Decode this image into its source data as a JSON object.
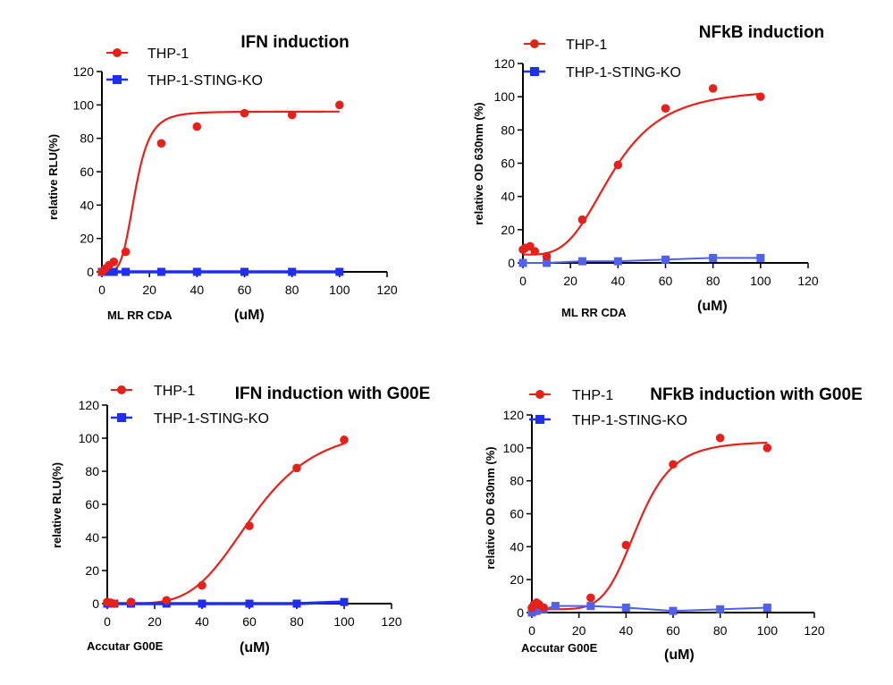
{
  "colors": {
    "thp1": "#e8201a",
    "ko": "#1f2ef0",
    "ko_light": "#5060f0"
  },
  "legend_labels": [
    "THP-1",
    "THP-1-STING-KO"
  ],
  "chart_data": [
    {
      "type": "scatter",
      "title": "IFN induction",
      "ylabel": "relative RLU(%)",
      "xlabel": "ML RR CDA",
      "xunit": "(uM)",
      "xlim": [
        0,
        120
      ],
      "ylim": [
        0,
        120
      ],
      "xticks": [
        "0",
        "20",
        "40",
        "60",
        "80",
        "100",
        "120"
      ],
      "yticks": [
        "0",
        "20",
        "40",
        "60",
        "80",
        "100",
        "120"
      ],
      "curve": {
        "bottom": 0,
        "top": 96,
        "ec50": 14,
        "hill": 4.5
      },
      "series": [
        {
          "name": "THP-1",
          "x": [
            0,
            1.5,
            3,
            5,
            10,
            25,
            40,
            60,
            80,
            100
          ],
          "y": [
            0,
            2,
            4,
            6,
            12,
            77,
            87,
            95,
            94,
            100
          ]
        },
        {
          "name": "THP-1-STING-KO",
          "x": [
            0,
            1.5,
            3,
            5,
            10,
            25,
            40,
            60,
            80,
            100
          ],
          "y": [
            0,
            0,
            0,
            0,
            0,
            0,
            0,
            0,
            0,
            0
          ]
        }
      ]
    },
    {
      "type": "scatter",
      "title": "NFkB induction",
      "ylabel": "relative OD 630nm (%)",
      "xlabel": "ML RR CDA",
      "xunit": "(uM)",
      "xlim": [
        0,
        120
      ],
      "ylim": [
        0,
        120
      ],
      "xticks": [
        "0",
        "20",
        "40",
        "60",
        "80",
        "100",
        "120"
      ],
      "yticks": [
        "0",
        "20",
        "40",
        "60",
        "80",
        "100",
        "120"
      ],
      "curve": {
        "bottom": 5,
        "top": 105,
        "ec50": 38,
        "hill": 3.5
      },
      "series": [
        {
          "name": "THP-1",
          "x": [
            0,
            1,
            3,
            5,
            10,
            25,
            40,
            60,
            80,
            100
          ],
          "y": [
            8,
            9,
            10,
            7,
            4,
            26,
            59,
            93,
            105,
            100
          ]
        },
        {
          "name": "THP-1-STING-KO",
          "x": [
            0,
            10,
            25,
            40,
            60,
            80,
            100
          ],
          "y": [
            0,
            0,
            1,
            1,
            2,
            3,
            3
          ]
        }
      ]
    },
    {
      "type": "scatter",
      "title": "IFN induction with G00E",
      "ylabel": "relative RLU(%)",
      "xlabel": "Accutar G00E",
      "xunit": "(uM)",
      "xlim": [
        0,
        120
      ],
      "ylim": [
        0,
        120
      ],
      "xticks": [
        "0",
        "20",
        "40",
        "60",
        "80",
        "100",
        "120"
      ],
      "yticks": [
        "0",
        "20",
        "40",
        "60",
        "80",
        "100",
        "120"
      ],
      "curve": {
        "bottom": 0,
        "top": 108,
        "ec50": 62,
        "hill": 4.5
      },
      "series": [
        {
          "name": "THP-1",
          "x": [
            0,
            1.5,
            3,
            10,
            25,
            40,
            60,
            80,
            100
          ],
          "y": [
            1,
            0.5,
            0,
            1,
            2,
            11,
            47,
            82,
            99
          ]
        },
        {
          "name": "THP-1-STING-KO",
          "x": [
            0,
            1.5,
            3,
            10,
            25,
            40,
            60,
            80,
            100
          ],
          "y": [
            0,
            0,
            0,
            0,
            0,
            0,
            0,
            0,
            1
          ]
        }
      ]
    },
    {
      "type": "scatter",
      "title": "NFkB induction with G00E",
      "ylabel": "relative OD 630nm (%)",
      "xlabel": "Accutar G00E",
      "xunit": "(uM)",
      "xlim": [
        0,
        120
      ],
      "ylim": [
        0,
        120
      ],
      "xticks": [
        "0",
        "20",
        "40",
        "60",
        "80",
        "100",
        "120"
      ],
      "yticks": [
        "0",
        "20",
        "40",
        "60",
        "80",
        "100",
        "120"
      ],
      "curve": {
        "bottom": 2,
        "top": 104,
        "ec50": 45,
        "hill": 6
      },
      "series": [
        {
          "name": "THP-1",
          "x": [
            0,
            1,
            2,
            3,
            5,
            25,
            40,
            60,
            80,
            100
          ],
          "y": [
            3,
            5,
            6,
            5,
            3,
            9,
            41,
            90,
            106,
            100
          ]
        },
        {
          "name": "THP-1-STING-KO",
          "x": [
            0,
            1,
            2,
            3,
            5,
            10,
            25,
            40,
            60,
            80,
            100
          ],
          "y": [
            0,
            1,
            1,
            2,
            2,
            4,
            4,
            3,
            1,
            2,
            3
          ]
        }
      ]
    }
  ]
}
